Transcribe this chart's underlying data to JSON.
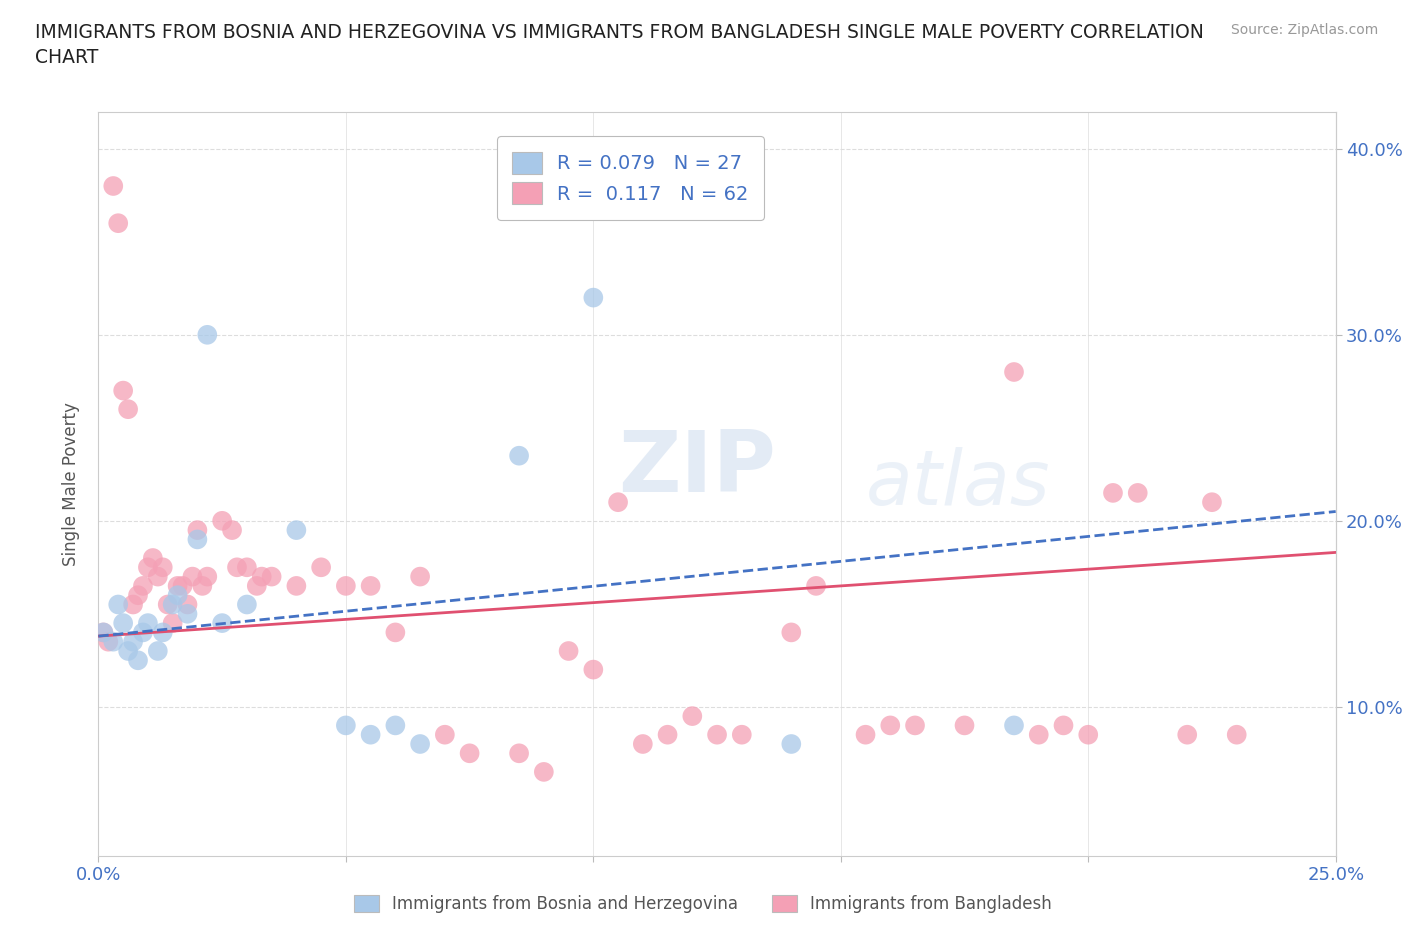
{
  "title": "IMMIGRANTS FROM BOSNIA AND HERZEGOVINA VS IMMIGRANTS FROM BANGLADESH SINGLE MALE POVERTY CORRELATION\nCHART",
  "source": "Source: ZipAtlas.com",
  "ylabel": "Single Male Poverty",
  "xlim": [
    0.0,
    0.25
  ],
  "ylim": [
    0.02,
    0.42
  ],
  "xticks": [
    0.0,
    0.05,
    0.1,
    0.15,
    0.2,
    0.25
  ],
  "yticks": [
    0.1,
    0.2,
    0.3,
    0.4
  ],
  "ytick_labels": [
    "10.0%",
    "20.0%",
    "30.0%",
    "40.0%"
  ],
  "xtick_labels": [
    "0.0%",
    "",
    "",
    "",
    "",
    "25.0%"
  ],
  "r_bosnia": 0.079,
  "n_bosnia": 27,
  "r_bangladesh": 0.117,
  "n_bangladesh": 62,
  "color_bosnia": "#A8C8E8",
  "color_bangladesh": "#F4A0B5",
  "color_text_blue": "#4472C4",
  "bosnia_x": [
    0.001,
    0.003,
    0.004,
    0.005,
    0.006,
    0.007,
    0.008,
    0.009,
    0.01,
    0.012,
    0.013,
    0.015,
    0.016,
    0.018,
    0.02,
    0.022,
    0.025,
    0.03,
    0.04,
    0.05,
    0.055,
    0.06,
    0.065,
    0.085,
    0.1,
    0.14,
    0.185
  ],
  "bosnia_y": [
    0.14,
    0.135,
    0.155,
    0.145,
    0.13,
    0.135,
    0.125,
    0.14,
    0.145,
    0.13,
    0.14,
    0.155,
    0.16,
    0.15,
    0.19,
    0.3,
    0.145,
    0.155,
    0.195,
    0.09,
    0.085,
    0.09,
    0.08,
    0.235,
    0.32,
    0.08,
    0.09
  ],
  "bangladesh_x": [
    0.001,
    0.002,
    0.003,
    0.004,
    0.005,
    0.006,
    0.007,
    0.008,
    0.009,
    0.01,
    0.011,
    0.012,
    0.013,
    0.014,
    0.015,
    0.016,
    0.017,
    0.018,
    0.019,
    0.02,
    0.021,
    0.022,
    0.025,
    0.027,
    0.028,
    0.03,
    0.032,
    0.033,
    0.035,
    0.04,
    0.045,
    0.05,
    0.055,
    0.06,
    0.065,
    0.07,
    0.075,
    0.085,
    0.09,
    0.095,
    0.1,
    0.105,
    0.11,
    0.115,
    0.12,
    0.125,
    0.13,
    0.14,
    0.145,
    0.155,
    0.16,
    0.165,
    0.175,
    0.185,
    0.19,
    0.195,
    0.2,
    0.205,
    0.21,
    0.22,
    0.225,
    0.23
  ],
  "bangladesh_y": [
    0.14,
    0.135,
    0.38,
    0.36,
    0.27,
    0.26,
    0.155,
    0.16,
    0.165,
    0.175,
    0.18,
    0.17,
    0.175,
    0.155,
    0.145,
    0.165,
    0.165,
    0.155,
    0.17,
    0.195,
    0.165,
    0.17,
    0.2,
    0.195,
    0.175,
    0.175,
    0.165,
    0.17,
    0.17,
    0.165,
    0.175,
    0.165,
    0.165,
    0.14,
    0.17,
    0.085,
    0.075,
    0.075,
    0.065,
    0.13,
    0.12,
    0.21,
    0.08,
    0.085,
    0.095,
    0.085,
    0.085,
    0.14,
    0.165,
    0.085,
    0.09,
    0.09,
    0.09,
    0.28,
    0.085,
    0.09,
    0.085,
    0.215,
    0.215,
    0.085,
    0.21,
    0.085
  ],
  "trend_x_start": 0.0,
  "trend_x_end": 0.25,
  "bosnia_trend_y_start": 0.138,
  "bosnia_trend_y_end": 0.205,
  "bangladesh_trend_y_start": 0.138,
  "bangladesh_trend_y_end": 0.183,
  "watermark_zip": "ZIP",
  "watermark_atlas": "atlas",
  "background_color": "#FFFFFF",
  "grid_color": "#DDDDDD",
  "grid_style_h": "--",
  "grid_style_v": "-"
}
